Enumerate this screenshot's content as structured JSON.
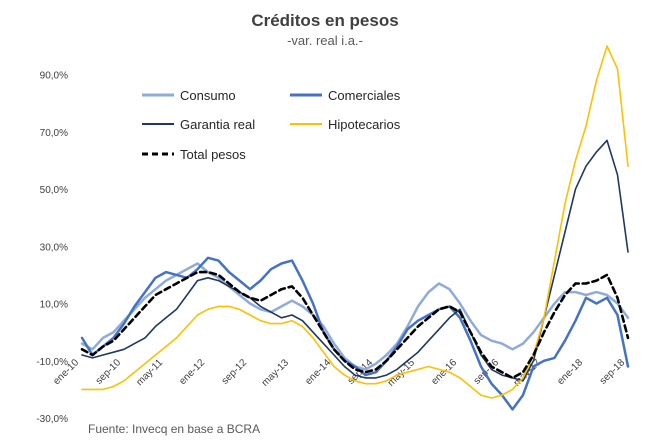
{
  "chart_data": {
    "type": "line",
    "title": "Créditos en pesos",
    "subtitle": "-var. real i.a.-",
    "source": "Fuente: Invecq en base a BCRA",
    "ylim": [
      -30,
      100
    ],
    "yticks": [
      -30,
      -10,
      10,
      30,
      50,
      70,
      90
    ],
    "ytick_labels": [
      "-30,0%",
      "-10,0%",
      "10,0%",
      "30,0%",
      "50,0%",
      "70,0%",
      "90,0%"
    ],
    "xlim": [
      0,
      104
    ],
    "xticks": [
      {
        "x": 0,
        "label": "ene-10"
      },
      {
        "x": 8,
        "label": "sep-10"
      },
      {
        "x": 16,
        "label": "may-11"
      },
      {
        "x": 24,
        "label": "ene-12"
      },
      {
        "x": 32,
        "label": "sep-12"
      },
      {
        "x": 40,
        "label": "may-13"
      },
      {
        "x": 48,
        "label": "ene-14"
      },
      {
        "x": 56,
        "label": "sep-14"
      },
      {
        "x": 64,
        "label": "may-15"
      },
      {
        "x": 72,
        "label": "ene-16"
      },
      {
        "x": 80,
        "label": "sep-16"
      },
      {
        "x": 88,
        "label": "may-17"
      },
      {
        "x": 96,
        "label": "ene-18"
      },
      {
        "x": 104,
        "label": "sep-18"
      }
    ],
    "series": [
      {
        "name": "Consumo",
        "color": "#8faadc",
        "dash": false,
        "width": 2.5,
        "points": [
          [
            0,
            -4
          ],
          [
            2,
            -6
          ],
          [
            4,
            -2
          ],
          [
            6,
            0
          ],
          [
            8,
            4
          ],
          [
            10,
            8
          ],
          [
            12,
            12
          ],
          [
            14,
            15
          ],
          [
            16,
            18
          ],
          [
            18,
            20
          ],
          [
            20,
            22
          ],
          [
            22,
            24
          ],
          [
            24,
            21
          ],
          [
            26,
            19
          ],
          [
            28,
            16
          ],
          [
            30,
            13
          ],
          [
            32,
            10
          ],
          [
            34,
            8
          ],
          [
            36,
            7
          ],
          [
            38,
            9
          ],
          [
            40,
            11
          ],
          [
            42,
            9
          ],
          [
            44,
            6
          ],
          [
            46,
            2
          ],
          [
            48,
            -4
          ],
          [
            50,
            -9
          ],
          [
            52,
            -12
          ],
          [
            54,
            -13
          ],
          [
            56,
            -11
          ],
          [
            58,
            -8
          ],
          [
            60,
            -4
          ],
          [
            62,
            2
          ],
          [
            64,
            9
          ],
          [
            66,
            14
          ],
          [
            68,
            17
          ],
          [
            70,
            15
          ],
          [
            72,
            10
          ],
          [
            74,
            4
          ],
          [
            76,
            -1
          ],
          [
            78,
            -3
          ],
          [
            80,
            -4
          ],
          [
            82,
            -6
          ],
          [
            84,
            -4
          ],
          [
            86,
            0
          ],
          [
            88,
            5
          ],
          [
            90,
            10
          ],
          [
            92,
            14
          ],
          [
            94,
            14
          ],
          [
            96,
            13
          ],
          [
            98,
            14
          ],
          [
            100,
            13
          ],
          [
            102,
            10
          ],
          [
            104,
            5
          ]
        ]
      },
      {
        "name": "Comerciales",
        "color": "#4472c4",
        "dash": false,
        "width": 2.5,
        "points": [
          [
            0,
            -2
          ],
          [
            2,
            -8
          ],
          [
            4,
            -5
          ],
          [
            6,
            -2
          ],
          [
            8,
            3
          ],
          [
            10,
            9
          ],
          [
            12,
            14
          ],
          [
            14,
            19
          ],
          [
            16,
            21
          ],
          [
            18,
            20
          ],
          [
            20,
            19
          ],
          [
            22,
            22
          ],
          [
            24,
            26
          ],
          [
            26,
            25
          ],
          [
            28,
            21
          ],
          [
            30,
            18
          ],
          [
            32,
            15
          ],
          [
            34,
            18
          ],
          [
            36,
            22
          ],
          [
            38,
            24
          ],
          [
            40,
            25
          ],
          [
            42,
            18
          ],
          [
            44,
            10
          ],
          [
            46,
            0
          ],
          [
            48,
            -6
          ],
          [
            50,
            -10
          ],
          [
            52,
            -12
          ],
          [
            54,
            -15
          ],
          [
            56,
            -14
          ],
          [
            58,
            -10
          ],
          [
            60,
            -5
          ],
          [
            62,
            1
          ],
          [
            64,
            4
          ],
          [
            66,
            6
          ],
          [
            68,
            8
          ],
          [
            70,
            9
          ],
          [
            72,
            5
          ],
          [
            74,
            -3
          ],
          [
            76,
            -12
          ],
          [
            78,
            -18
          ],
          [
            80,
            -22
          ],
          [
            82,
            -27
          ],
          [
            84,
            -22
          ],
          [
            86,
            -12
          ],
          [
            88,
            -10
          ],
          [
            90,
            -9
          ],
          [
            92,
            -3
          ],
          [
            94,
            4
          ],
          [
            96,
            12
          ],
          [
            98,
            10
          ],
          [
            100,
            12
          ],
          [
            102,
            6
          ],
          [
            104,
            -12
          ]
        ]
      },
      {
        "name": "Garantia real",
        "color": "#1f3864",
        "dash": false,
        "width": 1.6,
        "points": [
          [
            0,
            -8
          ],
          [
            2,
            -9
          ],
          [
            4,
            -8
          ],
          [
            6,
            -7
          ],
          [
            8,
            -6
          ],
          [
            10,
            -4
          ],
          [
            12,
            -2
          ],
          [
            14,
            2
          ],
          [
            16,
            5
          ],
          [
            18,
            8
          ],
          [
            20,
            13
          ],
          [
            22,
            18
          ],
          [
            24,
            19
          ],
          [
            26,
            18
          ],
          [
            28,
            16
          ],
          [
            30,
            14
          ],
          [
            32,
            12
          ],
          [
            34,
            9
          ],
          [
            36,
            7
          ],
          [
            38,
            5
          ],
          [
            40,
            6
          ],
          [
            42,
            4
          ],
          [
            44,
            0
          ],
          [
            46,
            -4
          ],
          [
            48,
            -8
          ],
          [
            50,
            -12
          ],
          [
            52,
            -15
          ],
          [
            54,
            -16
          ],
          [
            56,
            -16
          ],
          [
            58,
            -15
          ],
          [
            60,
            -13
          ],
          [
            62,
            -10
          ],
          [
            64,
            -7
          ],
          [
            66,
            -3
          ],
          [
            68,
            1
          ],
          [
            70,
            5
          ],
          [
            72,
            8
          ],
          [
            74,
            0
          ],
          [
            76,
            -8
          ],
          [
            78,
            -13
          ],
          [
            80,
            -15
          ],
          [
            82,
            -16
          ],
          [
            84,
            -17
          ],
          [
            86,
            -10
          ],
          [
            88,
            5
          ],
          [
            90,
            20
          ],
          [
            92,
            35
          ],
          [
            94,
            50
          ],
          [
            96,
            58
          ],
          [
            98,
            63
          ],
          [
            100,
            67
          ],
          [
            102,
            55
          ],
          [
            104,
            28
          ]
        ]
      },
      {
        "name": "Hipotecarios",
        "color": "#ffc000",
        "dash": false,
        "width": 1.6,
        "points": [
          [
            0,
            -20
          ],
          [
            2,
            -20
          ],
          [
            4,
            -20
          ],
          [
            6,
            -19
          ],
          [
            8,
            -17
          ],
          [
            10,
            -14
          ],
          [
            12,
            -11
          ],
          [
            14,
            -8
          ],
          [
            16,
            -5
          ],
          [
            18,
            -2
          ],
          [
            20,
            2
          ],
          [
            22,
            6
          ],
          [
            24,
            8
          ],
          [
            26,
            9
          ],
          [
            28,
            9
          ],
          [
            30,
            8
          ],
          [
            32,
            6
          ],
          [
            34,
            4
          ],
          [
            36,
            3
          ],
          [
            38,
            3
          ],
          [
            40,
            4
          ],
          [
            42,
            2
          ],
          [
            44,
            -2
          ],
          [
            46,
            -7
          ],
          [
            48,
            -12
          ],
          [
            50,
            -15
          ],
          [
            52,
            -17
          ],
          [
            54,
            -18
          ],
          [
            56,
            -18
          ],
          [
            58,
            -17
          ],
          [
            60,
            -15
          ],
          [
            62,
            -14
          ],
          [
            64,
            -13
          ],
          [
            66,
            -12
          ],
          [
            68,
            -13
          ],
          [
            70,
            -14
          ],
          [
            72,
            -16
          ],
          [
            74,
            -19
          ],
          [
            76,
            -22
          ],
          [
            78,
            -23
          ],
          [
            80,
            -22
          ],
          [
            82,
            -20
          ],
          [
            84,
            -16
          ],
          [
            86,
            -8
          ],
          [
            88,
            5
          ],
          [
            90,
            25
          ],
          [
            92,
            45
          ],
          [
            94,
            60
          ],
          [
            96,
            72
          ],
          [
            98,
            88
          ],
          [
            100,
            100
          ],
          [
            102,
            92
          ],
          [
            104,
            58
          ]
        ]
      },
      {
        "name": "Total pesos",
        "color": "#000000",
        "dash": true,
        "width": 2.6,
        "points": [
          [
            0,
            -6
          ],
          [
            2,
            -8
          ],
          [
            4,
            -5
          ],
          [
            6,
            -3
          ],
          [
            8,
            1
          ],
          [
            10,
            5
          ],
          [
            12,
            9
          ],
          [
            14,
            13
          ],
          [
            16,
            15
          ],
          [
            18,
            17
          ],
          [
            20,
            19
          ],
          [
            22,
            21
          ],
          [
            24,
            21
          ],
          [
            26,
            20
          ],
          [
            28,
            17
          ],
          [
            30,
            14
          ],
          [
            32,
            12
          ],
          [
            34,
            11
          ],
          [
            36,
            13
          ],
          [
            38,
            15
          ],
          [
            40,
            16
          ],
          [
            42,
            12
          ],
          [
            44,
            6
          ],
          [
            46,
            0
          ],
          [
            48,
            -6
          ],
          [
            50,
            -10
          ],
          [
            52,
            -13
          ],
          [
            54,
            -14
          ],
          [
            56,
            -13
          ],
          [
            58,
            -10
          ],
          [
            60,
            -6
          ],
          [
            62,
            -2
          ],
          [
            64,
            2
          ],
          [
            66,
            5
          ],
          [
            68,
            8
          ],
          [
            70,
            9
          ],
          [
            72,
            7
          ],
          [
            74,
            0
          ],
          [
            76,
            -7
          ],
          [
            78,
            -12
          ],
          [
            80,
            -14
          ],
          [
            82,
            -16
          ],
          [
            84,
            -14
          ],
          [
            86,
            -8
          ],
          [
            88,
            0
          ],
          [
            90,
            7
          ],
          [
            92,
            13
          ],
          [
            94,
            17
          ],
          [
            96,
            17
          ],
          [
            98,
            18
          ],
          [
            100,
            20
          ],
          [
            102,
            12
          ],
          [
            104,
            -2
          ]
        ]
      }
    ]
  }
}
